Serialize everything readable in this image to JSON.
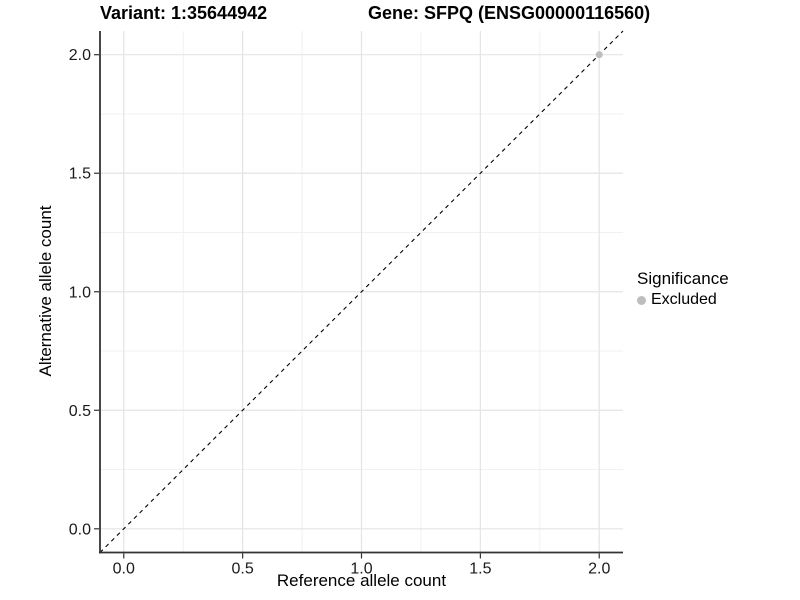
{
  "colors": {
    "axis_line": "#333333",
    "tick_mark": "#333333",
    "tick_label": "#1a1a1a",
    "grid_major": "#e4e4e4",
    "grid_minor": "#f1f1f1",
    "reference_line": "#000000",
    "excluded_point": "#bdbdbd",
    "panel_background": "#ffffff"
  },
  "chart_data": {
    "type": "scatter",
    "title_left": "Variant: 1:35644942",
    "title_right": "Gene: SFPQ (ENSG00000116560)",
    "xlabel": "Reference allele count",
    "ylabel": "Alternative allele count",
    "xlim": [
      -0.1,
      2.1
    ],
    "ylim": [
      -0.1,
      2.1
    ],
    "x_ticks": [
      0.0,
      0.5,
      1.0,
      1.5,
      2.0
    ],
    "y_ticks": [
      0.0,
      0.5,
      1.0,
      1.5,
      2.0
    ],
    "x_minor_ticks": [
      0.25,
      0.75,
      1.25,
      1.75
    ],
    "y_minor_ticks": [
      0.25,
      0.75,
      1.25,
      1.75
    ],
    "tick_label_format_decimals": 1,
    "grid": true,
    "reference_line": {
      "style": "dashed",
      "slope": 1,
      "intercept": 0
    },
    "series": [
      {
        "name": "Excluded",
        "color": "#bdbdbd",
        "points": [
          {
            "x": 2.0,
            "y": 2.0
          }
        ]
      }
    ],
    "legend": {
      "title": "Significance",
      "position": "right",
      "entries": [
        {
          "label": "Excluded",
          "color": "#bdbdbd"
        }
      ]
    }
  }
}
